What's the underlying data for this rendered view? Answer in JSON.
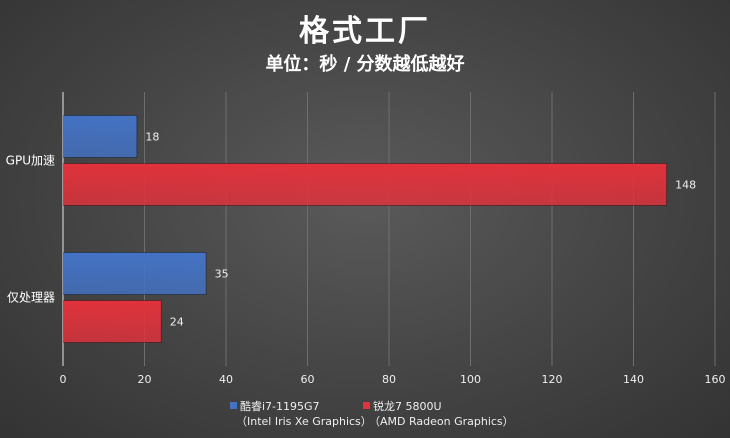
{
  "title": "格式工厂",
  "subtitle": "单位：秒 / 分数越低越好",
  "chart_data": {
    "type": "bar",
    "orientation": "horizontal",
    "categories": [
      "GPU加速",
      "仅处理器"
    ],
    "series": [
      {
        "name": "酷睿i7-1195G7",
        "note": "（Intel Iris Xe Graphics）",
        "values": [
          18,
          35
        ],
        "color": "#4472c4"
      },
      {
        "name": "锐龙7 5800U",
        "note": "（AMD Radeon Graphics）",
        "values": [
          148,
          24
        ],
        "color": "#e0323c"
      }
    ],
    "xlim": [
      0,
      160
    ],
    "xticks": [
      0,
      20,
      40,
      60,
      80,
      100,
      120,
      140,
      160
    ],
    "grid": true,
    "legend_position": "bottom"
  }
}
